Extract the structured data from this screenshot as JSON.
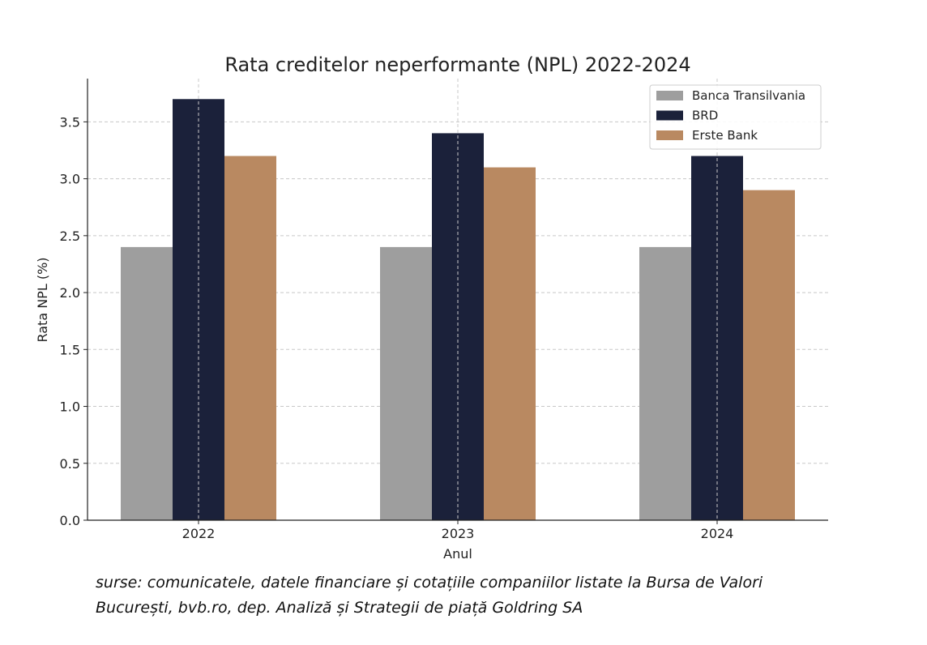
{
  "chart_data": {
    "type": "bar",
    "title": "Rata creditelor neperformante (NPL) 2022-2024",
    "xlabel": "Anul",
    "ylabel": "Rata NPL (%)",
    "categories": [
      "2022",
      "2023",
      "2024"
    ],
    "series": [
      {
        "name": "Banca Transilvania",
        "color": "#9e9e9e",
        "values": [
          2.4,
          2.4,
          2.4
        ]
      },
      {
        "name": "BRD",
        "color": "#1b213a",
        "values": [
          3.7,
          3.4,
          3.2
        ]
      },
      {
        "name": "Erste Bank",
        "color": "#b98961",
        "values": [
          3.2,
          3.1,
          2.9
        ]
      }
    ],
    "ylim": [
      0,
      3.88
    ],
    "yticks": [
      "0.0",
      "0.5",
      "1.0",
      "1.5",
      "2.0",
      "2.5",
      "3.0",
      "3.5"
    ],
    "grid": true,
    "legend_position": "top-right"
  },
  "source_note": "surse: comunicatele, datele financiare și cotațiile companiilor listate la Bursa de Valori București, bvb.ro, dep. Analiză și Strategii de piață Goldring SA"
}
